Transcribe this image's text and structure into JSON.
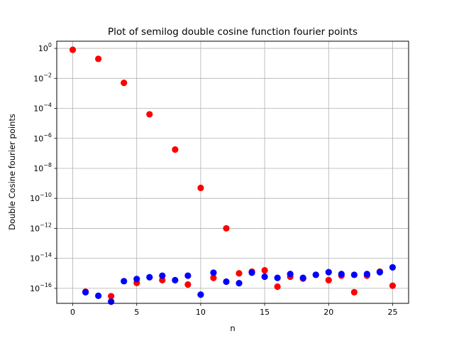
{
  "chart_data": {
    "type": "scatter",
    "title": "Plot of semilog double cosine function fourier points",
    "xlabel": "n",
    "ylabel": "Double Cosine fourier points",
    "yscale": "log",
    "xlim": [
      -1.25,
      26.25
    ],
    "ylim": [
      1e-17,
      3
    ],
    "grid": true,
    "x_ticks": [
      0,
      5,
      10,
      15,
      20,
      25
    ],
    "y_tick_exponents": [
      0,
      -2,
      -4,
      -6,
      -8,
      -10,
      -12,
      -14,
      -16
    ],
    "series": [
      {
        "name": "red points",
        "color": "#ff0000",
        "x": [
          0,
          1,
          2,
          3,
          4,
          5,
          6,
          7,
          8,
          9,
          10,
          11,
          12,
          13,
          14,
          15,
          16,
          17,
          18,
          19,
          20,
          21,
          22,
          23,
          24,
          25
        ],
        "y": [
          0.8,
          6e-17,
          0.2,
          3e-17,
          0.005,
          2.3e-16,
          4e-05,
          3.5e-16,
          1.8e-07,
          1.8e-16,
          5e-10,
          5e-16,
          1e-12,
          1e-15,
          1.3e-15,
          1.6e-15,
          1.3e-16,
          6e-16,
          4.5e-16,
          8e-16,
          3.5e-16,
          7e-16,
          5.5e-17,
          7e-16,
          1.3e-15,
          1.5e-16
        ]
      },
      {
        "name": "blue points",
        "color": "#0000ff",
        "x": [
          1,
          2,
          3,
          4,
          5,
          6,
          7,
          8,
          9,
          10,
          11,
          12,
          13,
          14,
          15,
          16,
          17,
          18,
          19,
          20,
          21,
          22,
          23,
          24,
          25
        ],
        "y": [
          5.5e-17,
          3.2e-17,
          1.3e-17,
          3e-16,
          4.2e-16,
          5.5e-16,
          7e-16,
          3.5e-16,
          7e-16,
          3.8e-17,
          1.1e-15,
          2.8e-16,
          2.2e-16,
          1.1e-15,
          6e-16,
          5e-16,
          9e-16,
          5e-16,
          8e-16,
          1.2e-15,
          9e-16,
          8e-16,
          9e-16,
          1.2e-15,
          2.5e-15
        ]
      }
    ]
  }
}
